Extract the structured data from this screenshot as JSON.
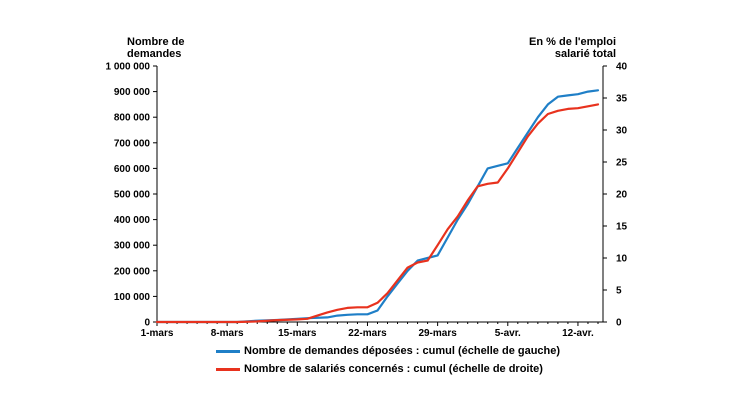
{
  "chart_data": {
    "type": "line",
    "ylabel_left_line1": "Nombre de",
    "ylabel_left_line2": "demandes",
    "ylabel_right_line1": "En % de l'emploi",
    "ylabel_right_line2": "salarié total",
    "x_tick_labels": [
      "1-mars",
      "8-mars",
      "15-mars",
      "22-mars",
      "29-mars",
      "5-avr.",
      "12-avr."
    ],
    "y_left_ticks": [
      "0",
      "100 000",
      "200 000",
      "300 000",
      "400 000",
      "500 000",
      "600 000",
      "700 000",
      "800 000",
      "900 000",
      "1 000 000"
    ],
    "y_right_ticks": [
      "0",
      "5",
      "10",
      "15",
      "20",
      "25",
      "30",
      "35",
      "40"
    ],
    "ylim_left": [
      0,
      1000000
    ],
    "ylim_right": [
      0,
      40
    ],
    "x_start_label": "1-mars",
    "x_day_range": [
      0,
      44.5
    ],
    "series": [
      {
        "name": "Nombre de demandes déposées : cumul (échelle de gauche)",
        "axis": "left",
        "color": "#1f7fc7",
        "x": [
          0,
          8,
          10,
          12,
          14,
          15,
          17,
          18,
          19,
          20,
          21,
          22,
          23,
          24,
          25,
          26,
          27,
          28,
          29,
          30,
          31,
          32,
          33,
          34,
          35,
          36,
          37,
          38,
          39,
          40,
          41,
          42,
          43,
          44
        ],
        "y": [
          0,
          0,
          5000,
          8000,
          12000,
          15000,
          18000,
          25000,
          28000,
          30000,
          30000,
          45000,
          100000,
          150000,
          200000,
          240000,
          250000,
          260000,
          330000,
          400000,
          460000,
          530000,
          600000,
          610000,
          620000,
          680000,
          740000,
          800000,
          850000,
          880000,
          885000,
          890000,
          900000,
          905000
        ]
      },
      {
        "name": "Nombre de salariés concernés : cumul (échelle de droite)",
        "axis": "right",
        "color": "#e8321e",
        "x": [
          0,
          8,
          10,
          12,
          14,
          15,
          16,
          17,
          18,
          19,
          20,
          21,
          22,
          23,
          24,
          25,
          26,
          27,
          28,
          29,
          30,
          31,
          32,
          33,
          34,
          35,
          36,
          37,
          38,
          39,
          40,
          41,
          42,
          43,
          44
        ],
        "y": [
          0,
          0,
          0.1,
          0.3,
          0.4,
          0.5,
          1.0,
          1.5,
          1.9,
          2.2,
          2.3,
          2.3,
          3.0,
          4.5,
          6.5,
          8.5,
          9.3,
          9.6,
          12.0,
          14.5,
          16.5,
          19.0,
          21.2,
          21.6,
          21.8,
          24.0,
          26.5,
          29.0,
          31.0,
          32.5,
          33.0,
          33.3,
          33.4,
          33.7,
          34.0
        ]
      }
    ],
    "grid": false,
    "legend_position": "bottom"
  }
}
